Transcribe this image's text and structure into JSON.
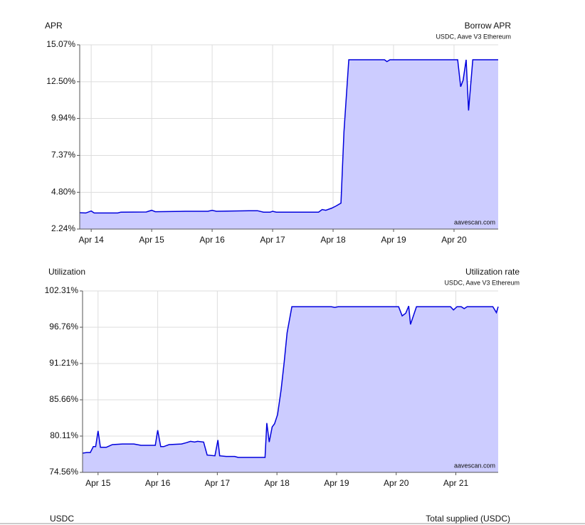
{
  "chart_data": [
    {
      "type": "area",
      "y_label": "APR",
      "title": "Borrow APR",
      "subtitle": "USDC, Aave V3 Ethereum",
      "watermark": "aavescan.com",
      "color": "#0000dd",
      "fill_color": "#ccccff",
      "grid": true,
      "xlim": [
        13.81,
        20.73
      ],
      "ylim": [
        2.24,
        15.07
      ],
      "xticks": [
        {
          "value": 14,
          "label": "Apr 14"
        },
        {
          "value": 15,
          "label": "Apr 15"
        },
        {
          "value": 16,
          "label": "Apr 16"
        },
        {
          "value": 17,
          "label": "Apr 17"
        },
        {
          "value": 18,
          "label": "Apr 18"
        },
        {
          "value": 19,
          "label": "Apr 19"
        },
        {
          "value": 20,
          "label": "Apr 20"
        }
      ],
      "yticks": [
        {
          "value": 2.24,
          "label": "2.24%"
        },
        {
          "value": 4.8,
          "label": "4.80%"
        },
        {
          "value": 7.37,
          "label": "7.37%"
        },
        {
          "value": 9.94,
          "label": "9.94%"
        },
        {
          "value": 12.5,
          "label": "12.50%"
        },
        {
          "value": 15.07,
          "label": "15.07%"
        }
      ],
      "x": [
        13.81,
        13.91,
        14.0,
        14.05,
        14.44,
        14.49,
        14.91,
        15.0,
        15.06,
        15.55,
        15.93,
        16.0,
        16.07,
        16.61,
        16.75,
        16.85,
        16.96,
        17.0,
        17.06,
        17.76,
        17.82,
        17.88,
        17.98,
        18.05,
        18.13,
        18.18,
        18.26,
        18.85,
        18.89,
        18.94,
        20.06,
        20.11,
        20.15,
        20.2,
        20.24,
        20.31,
        20.73
      ],
      "values": [
        3.38,
        3.36,
        3.5,
        3.36,
        3.36,
        3.42,
        3.43,
        3.55,
        3.45,
        3.48,
        3.48,
        3.55,
        3.48,
        3.52,
        3.52,
        3.42,
        3.42,
        3.48,
        3.42,
        3.42,
        3.6,
        3.55,
        3.7,
        3.85,
        4.05,
        9.0,
        14.03,
        14.03,
        13.9,
        14.03,
        14.03,
        12.15,
        12.6,
        14.03,
        10.5,
        14.03,
        14.03
      ]
    },
    {
      "type": "area",
      "y_label": "Utilization",
      "title": "Utilization rate",
      "subtitle": "USDC, Aave V3 Ethereum",
      "watermark": "aavescan.com",
      "color": "#0000dd",
      "fill_color": "#ccccff",
      "grid": true,
      "xlim": [
        14.74,
        21.71
      ],
      "ylim": [
        74.56,
        102.31
      ],
      "xticks": [
        {
          "value": 15,
          "label": "Apr 15"
        },
        {
          "value": 16,
          "label": "Apr 16"
        },
        {
          "value": 17,
          "label": "Apr 17"
        },
        {
          "value": 18,
          "label": "Apr 18"
        },
        {
          "value": 19,
          "label": "Apr 19"
        },
        {
          "value": 20,
          "label": "Apr 20"
        },
        {
          "value": 21,
          "label": "Apr 21"
        }
      ],
      "yticks": [
        {
          "value": 74.56,
          "label": "74.56%"
        },
        {
          "value": 80.11,
          "label": "80.11%"
        },
        {
          "value": 85.66,
          "label": "85.66%"
        },
        {
          "value": 91.21,
          "label": "91.21%"
        },
        {
          "value": 96.76,
          "label": "96.76%"
        },
        {
          "value": 102.31,
          "label": "102.31%"
        }
      ],
      "x": [
        14.74,
        14.81,
        14.87,
        14.92,
        14.96,
        15.0,
        15.04,
        15.14,
        15.24,
        15.41,
        15.6,
        15.72,
        15.96,
        16.0,
        16.05,
        16.1,
        16.19,
        16.4,
        16.48,
        16.55,
        16.62,
        16.67,
        16.77,
        16.83,
        16.96,
        17.01,
        17.04,
        17.15,
        17.29,
        17.35,
        17.47,
        17.8,
        17.83,
        17.87,
        17.92,
        17.96,
        18.01,
        18.07,
        18.12,
        18.17,
        18.25,
        18.91,
        18.97,
        19.03,
        20.04,
        20.1,
        20.16,
        20.21,
        20.24,
        20.34,
        20.91,
        20.96,
        21.02,
        21.09,
        21.14,
        21.19,
        21.62,
        21.68,
        21.71
      ],
      "values": [
        77.5,
        77.6,
        77.6,
        78.5,
        78.5,
        80.9,
        78.4,
        78.4,
        78.8,
        78.9,
        78.9,
        78.7,
        78.7,
        81.0,
        78.5,
        78.5,
        78.8,
        78.9,
        79.1,
        79.3,
        79.2,
        79.3,
        79.2,
        77.2,
        77.1,
        79.5,
        77.1,
        77.0,
        77.0,
        76.85,
        76.85,
        76.85,
        82.1,
        79.2,
        81.5,
        82.0,
        83.4,
        87.2,
        91.3,
        95.9,
        99.9,
        99.9,
        99.8,
        99.9,
        99.9,
        98.5,
        98.9,
        100.0,
        97.2,
        99.9,
        99.9,
        99.4,
        99.9,
        99.9,
        99.6,
        99.9,
        99.9,
        99.0,
        99.9
      ]
    }
  ],
  "footer": {
    "left": "USDC",
    "right": "Total supplied (USDC)"
  }
}
